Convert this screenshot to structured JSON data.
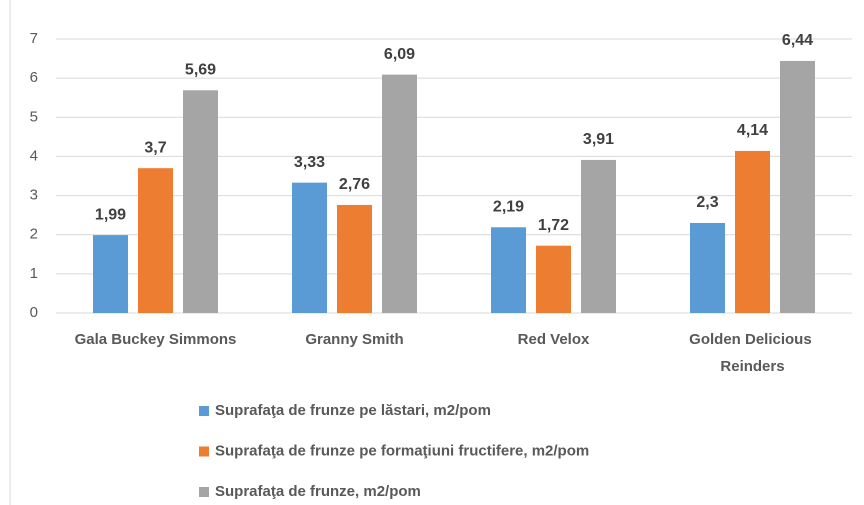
{
  "chart_data": {
    "type": "bar",
    "categories": [
      "Gala Buckey Simmons",
      "Granny Smith",
      "Red Velox",
      "Golden Delicious Reinders"
    ],
    "series": [
      {
        "name": "Suprafaţa de frunze pe lăstari, m2/pom",
        "color": "#5b9bd5",
        "values": [
          1.99,
          3.33,
          2.19,
          2.3
        ],
        "value_labels": [
          "1,99",
          "3,33",
          "2,19",
          "2,3"
        ]
      },
      {
        "name": "Suprafaţa de frunze pe formaţiuni fructifere, m2/pom",
        "color": "#ed7d31",
        "values": [
          3.7,
          2.76,
          1.72,
          4.14
        ],
        "value_labels": [
          "3,7",
          "2,76",
          "1,72",
          "4,14"
        ]
      },
      {
        "name": "Suprafaţa de frunze, m2/pom",
        "color": "#a5a5a5",
        "values": [
          5.69,
          6.09,
          3.91,
          6.44
        ],
        "value_labels": [
          "5,69",
          "6,09",
          "3,91",
          "6,44"
        ]
      }
    ],
    "ylim": [
      0,
      7
    ],
    "yticks": [
      0,
      1,
      2,
      3,
      4,
      5,
      6,
      7
    ],
    "grid": true,
    "legend": "bottom"
  }
}
